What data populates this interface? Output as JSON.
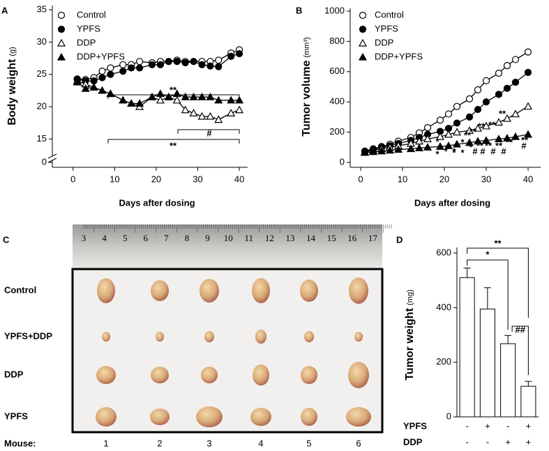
{
  "chart_data": [
    {
      "type": "line",
      "panel": "A",
      "ylabel": "Body weight",
      "ylabel_unit": "(g)",
      "xlabel": "Days after dosing",
      "x": [
        1,
        3,
        5,
        7,
        9,
        12,
        14,
        16,
        19,
        21,
        23,
        25,
        27,
        29,
        31,
        33,
        35,
        38,
        40
      ],
      "xlim": [
        -5,
        42
      ],
      "xticks": [
        0,
        10,
        20,
        30,
        40
      ],
      "ylim": [
        0,
        35
      ],
      "yticks": [
        0,
        15,
        20,
        25,
        30,
        35
      ],
      "axis_break": true,
      "series": [
        {
          "name": "Control",
          "color": "#000000",
          "marker": "circle",
          "marker_fill": "#ffffff",
          "values": [
            24.3,
            24.2,
            24.5,
            25.5,
            26,
            26.5,
            26.5,
            27,
            26.8,
            27,
            27,
            27.2,
            27,
            27,
            27,
            27,
            27.2,
            28.3,
            28.8
          ]
        },
        {
          "name": "YPFS",
          "color": "#000000",
          "marker": "circle",
          "marker_fill": "#000000",
          "values": [
            24.2,
            24,
            24,
            24.5,
            25,
            25.5,
            26,
            26,
            26.5,
            26.5,
            27,
            27,
            26.8,
            27,
            26.5,
            26.3,
            26.2,
            27.8,
            28.2
          ]
        },
        {
          "name": "DDP",
          "color": "#000000",
          "marker": "triangle",
          "marker_fill": "#ffffff",
          "values": [
            24,
            23.5,
            23,
            22.5,
            22,
            21,
            20.5,
            20,
            21.5,
            21,
            21.5,
            21,
            19.5,
            19,
            18.5,
            18.5,
            18,
            19,
            19.5
          ]
        },
        {
          "name": "DDP+YPFS",
          "color": "#000000",
          "marker": "triangle",
          "marker_fill": "#000000",
          "values": [
            23.8,
            22.8,
            23,
            22.5,
            22,
            21,
            20.5,
            20.5,
            21.5,
            22,
            21.5,
            22,
            21.5,
            21.5,
            21.5,
            21.5,
            21,
            21,
            21
          ]
        }
      ],
      "annotations": [
        "**",
        "#",
        "**"
      ]
    },
    {
      "type": "line",
      "panel": "B",
      "ylabel": "Tumor volume",
      "ylabel_unit": "(mm³)",
      "xlabel": "Days after dosing",
      "x": [
        1,
        3,
        5,
        7,
        9,
        12,
        14,
        16,
        19,
        21,
        23,
        26,
        28,
        30,
        33,
        35,
        37,
        40
      ],
      "xlim": [
        -2.5,
        43
      ],
      "xticks": [
        0,
        10,
        20,
        30,
        40
      ],
      "ylim": [
        0,
        1000
      ],
      "yticks": [
        0,
        200,
        400,
        600,
        800,
        1000
      ],
      "series": [
        {
          "name": "Control",
          "color": "#000000",
          "marker": "circle",
          "marker_fill": "#ffffff",
          "values": [
            75,
            90,
            105,
            120,
            140,
            165,
            195,
            230,
            280,
            320,
            370,
            420,
            480,
            540,
            590,
            640,
            680,
            730
          ]
        },
        {
          "name": "YPFS",
          "color": "#000000",
          "marker": "circle",
          "marker_fill": "#000000",
          "values": [
            70,
            85,
            100,
            110,
            125,
            145,
            165,
            185,
            205,
            225,
            260,
            300,
            350,
            400,
            450,
            490,
            530,
            595
          ]
        },
        {
          "name": "DDP",
          "color": "#000000",
          "marker": "triangle",
          "marker_fill": "#ffffff",
          "values": [
            70,
            80,
            90,
            100,
            110,
            125,
            140,
            155,
            170,
            185,
            200,
            210,
            225,
            240,
            265,
            290,
            320,
            370
          ]
        },
        {
          "name": "DDP+YPFS",
          "color": "#000000",
          "marker": "triangle",
          "marker_fill": "#000000",
          "values": [
            65,
            70,
            75,
            80,
            85,
            90,
            95,
            100,
            105,
            110,
            120,
            130,
            140,
            145,
            155,
            160,
            170,
            185
          ]
        }
      ],
      "annotations": [
        "*",
        "*",
        "*",
        "*",
        "**",
        "**",
        "**",
        "**",
        "**",
        "*",
        "*",
        "*",
        "*",
        "**",
        "**",
        "**",
        "**",
        "**",
        "#",
        "#",
        "#",
        "#",
        "#"
      ]
    },
    {
      "type": "bar",
      "panel": "D",
      "ylabel": "Tumor weight",
      "ylabel_unit": "(mg)",
      "values": [
        510,
        395,
        268,
        112
      ],
      "errors": [
        35,
        78,
        30,
        18
      ],
      "color": "#ffffff",
      "ylim": [
        0,
        600
      ],
      "yticks": [
        0,
        200,
        400,
        600
      ],
      "treatments": [
        {
          "name": "YPFS",
          "signs": [
            "-",
            "+",
            "-",
            "+"
          ]
        },
        {
          "name": "DDP",
          "signs": [
            "-",
            "-",
            "+",
            "+"
          ]
        }
      ],
      "annotations": [
        "**",
        "*",
        "##"
      ]
    }
  ],
  "photo": {
    "panel": "C",
    "ruler": [
      "3",
      "4",
      "5",
      "6",
      "7",
      "8",
      "9",
      "10",
      "11",
      "12",
      "13",
      "14",
      "15",
      "16",
      "17"
    ],
    "rows": [
      "Control",
      "YPFS+DDP",
      "DDP",
      "YPFS"
    ],
    "mouse_label": "Mouse:",
    "mice": [
      "1",
      "2",
      "3",
      "4",
      "5",
      "6"
    ]
  }
}
